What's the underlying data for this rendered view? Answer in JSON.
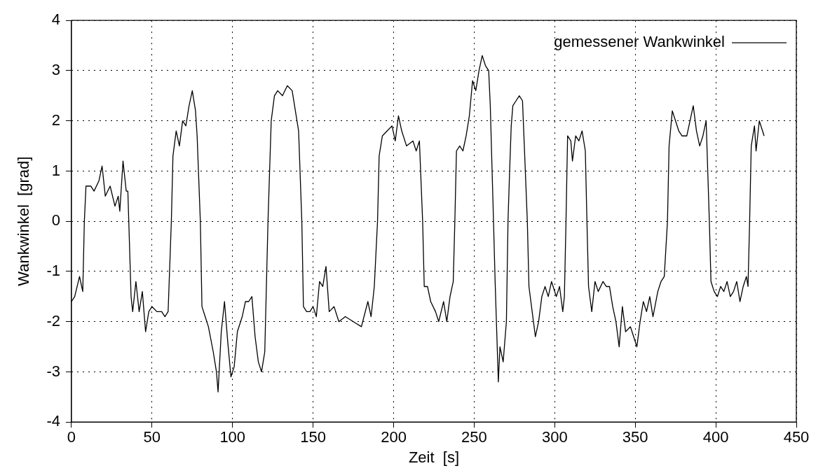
{
  "chart_data": {
    "type": "line",
    "xlabel": "Zeit  [s]",
    "ylabel": "Wankwinkel  [grad]",
    "xlim": [
      0,
      450
    ],
    "ylim": [
      -4,
      4
    ],
    "xticks": [
      0,
      50,
      100,
      150,
      200,
      250,
      300,
      350,
      400,
      450
    ],
    "yticks": [
      -4,
      -3,
      -2,
      -1,
      0,
      1,
      2,
      3,
      4
    ],
    "grid": true,
    "legend": "top right",
    "marker": "none",
    "line_style": "solid",
    "series": [
      {
        "name": "gemessener Wankwinkel",
        "color": "#000000",
        "x": [
          0,
          2,
          5,
          7,
          8,
          9,
          12,
          14,
          17,
          19,
          21,
          24,
          27,
          29,
          30,
          32,
          34,
          35,
          37,
          38,
          40,
          42,
          44,
          46,
          48,
          50,
          53,
          56,
          58,
          60,
          62,
          63,
          65,
          67,
          69,
          71,
          73,
          75,
          77,
          78,
          80,
          81,
          83,
          85,
          88,
          90,
          91,
          93,
          95,
          97,
          99,
          101,
          103,
          106,
          108,
          110,
          112,
          114,
          116,
          118,
          120,
          122,
          124,
          126,
          128,
          131,
          134,
          137,
          139,
          141,
          143,
          144,
          146,
          148,
          150,
          152,
          154,
          156,
          158,
          160,
          163,
          166,
          170,
          175,
          180,
          184,
          186,
          188,
          190,
          191,
          193,
          196,
          199,
          201,
          203,
          205,
          208,
          212,
          214,
          216,
          218,
          219,
          221,
          223,
          226,
          228,
          231,
          233,
          235,
          237,
          238,
          239,
          241,
          243,
          245,
          247,
          249,
          251,
          253,
          255,
          257,
          259,
          260,
          262,
          263,
          264,
          265,
          266,
          268,
          270,
          271,
          272,
          273,
          274,
          276,
          278,
          280,
          281,
          283,
          284,
          286,
          288,
          290,
          292,
          294,
          296,
          298,
          301,
          303,
          305,
          306,
          307,
          308,
          310,
          311,
          313,
          315,
          317,
          319,
          320,
          321,
          323,
          325,
          327,
          330,
          332,
          334,
          336,
          338,
          340,
          342,
          344,
          347,
          349,
          351,
          353,
          355,
          357,
          359,
          361,
          364,
          366,
          368,
          370,
          371,
          373,
          375,
          377,
          379,
          382,
          384,
          386,
          388,
          390,
          392,
          394,
          396,
          397,
          399,
          401,
          403,
          405,
          407,
          409,
          411,
          413,
          415,
          417,
          419,
          420,
          421,
          422,
          424,
          425,
          427,
          429,
          430
        ],
        "values": [
          -1.6,
          -1.5,
          -1.1,
          -1.4,
          0.0,
          0.7,
          0.7,
          0.6,
          0.8,
          1.1,
          0.5,
          0.7,
          0.3,
          0.5,
          0.2,
          1.2,
          0.6,
          0.6,
          -1.5,
          -1.8,
          -1.2,
          -1.8,
          -1.4,
          -2.2,
          -1.8,
          -1.7,
          -1.8,
          -1.8,
          -1.9,
          -1.8,
          0.0,
          1.3,
          1.8,
          1.5,
          2.0,
          1.9,
          2.3,
          2.6,
          2.2,
          1.7,
          0.0,
          -1.7,
          -1.9,
          -2.1,
          -2.6,
          -3.0,
          -3.4,
          -2.2,
          -1.6,
          -2.4,
          -3.1,
          -2.9,
          -2.2,
          -1.9,
          -1.6,
          -1.6,
          -1.5,
          -2.3,
          -2.8,
          -3.0,
          -2.6,
          0.0,
          2.0,
          2.5,
          2.6,
          2.5,
          2.7,
          2.6,
          2.2,
          1.8,
          0.0,
          -1.7,
          -1.8,
          -1.8,
          -1.7,
          -1.9,
          -1.2,
          -1.3,
          -0.9,
          -1.8,
          -1.7,
          -2.0,
          -1.9,
          -2.0,
          -2.1,
          -1.6,
          -1.9,
          -1.3,
          0.0,
          1.3,
          1.7,
          1.8,
          1.9,
          1.6,
          2.1,
          1.8,
          1.5,
          1.6,
          1.4,
          1.6,
          0.0,
          -1.3,
          -1.3,
          -1.6,
          -1.8,
          -2.0,
          -1.6,
          -2.0,
          -1.5,
          -1.2,
          0.0,
          1.4,
          1.5,
          1.4,
          1.7,
          2.1,
          2.8,
          2.6,
          3.0,
          3.3,
          3.1,
          3.0,
          2.3,
          0.0,
          -1.2,
          -2.2,
          -3.2,
          -2.5,
          -2.8,
          -2.0,
          0.0,
          1.0,
          1.9,
          2.3,
          2.4,
          2.5,
          2.4,
          1.6,
          0.0,
          -1.3,
          -1.8,
          -2.3,
          -2.0,
          -1.5,
          -1.3,
          -1.5,
          -1.2,
          -1.5,
          -1.3,
          -1.8,
          -1.5,
          0.0,
          1.7,
          1.6,
          1.2,
          1.7,
          1.6,
          1.8,
          1.4,
          0.0,
          -1.3,
          -1.8,
          -1.2,
          -1.4,
          -1.2,
          -1.3,
          -1.3,
          -1.7,
          -2.0,
          -2.5,
          -1.7,
          -2.2,
          -2.1,
          -2.3,
          -2.5,
          -2.0,
          -1.6,
          -1.8,
          -1.5,
          -1.9,
          -1.4,
          -1.2,
          -1.1,
          0.0,
          1.5,
          2.2,
          2.0,
          1.8,
          1.7,
          1.7,
          2.0,
          2.3,
          1.8,
          1.5,
          1.7,
          2.0,
          0.0,
          -1.2,
          -1.4,
          -1.5,
          -1.3,
          -1.4,
          -1.2,
          -1.5,
          -1.4,
          -1.2,
          -1.6,
          -1.3,
          -1.1,
          -1.3,
          0.0,
          1.5,
          1.9,
          1.4,
          2.0,
          1.8,
          1.7
        ]
      }
    ]
  }
}
